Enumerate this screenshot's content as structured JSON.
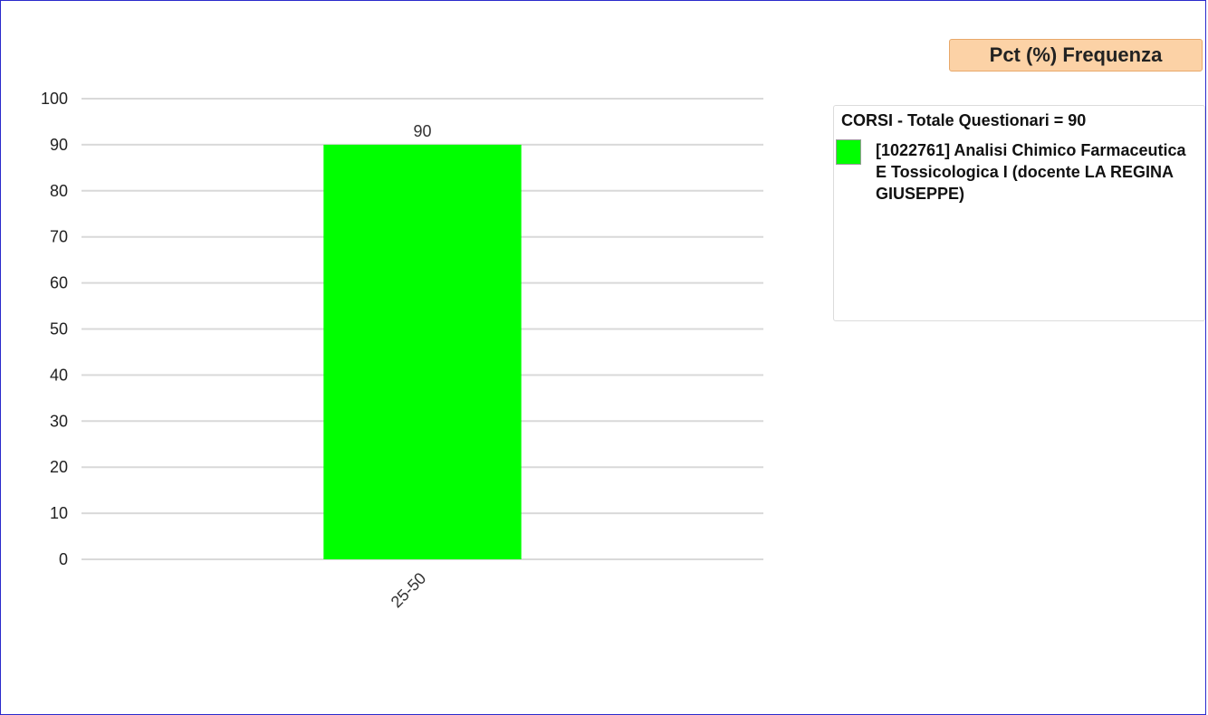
{
  "chart_data": {
    "type": "bar",
    "title": "Pct (%) Frequenza",
    "categories": [
      "25-50"
    ],
    "series": [
      {
        "name": "[1022761] Analisi Chimico Farmaceutica E Tossicologica I (docente LA REGINA GIUSEPPE)",
        "values": [
          90
        ],
        "color": "#00ff00"
      }
    ],
    "data_labels": [
      "90"
    ],
    "ylim": [
      0,
      100
    ],
    "yticks": [
      "0",
      "10",
      "20",
      "30",
      "40",
      "50",
      "60",
      "70",
      "80",
      "90",
      "100"
    ],
    "grid": true,
    "legend": {
      "title": "CORSI - Totale Questionari = 90",
      "placement": "right"
    }
  }
}
